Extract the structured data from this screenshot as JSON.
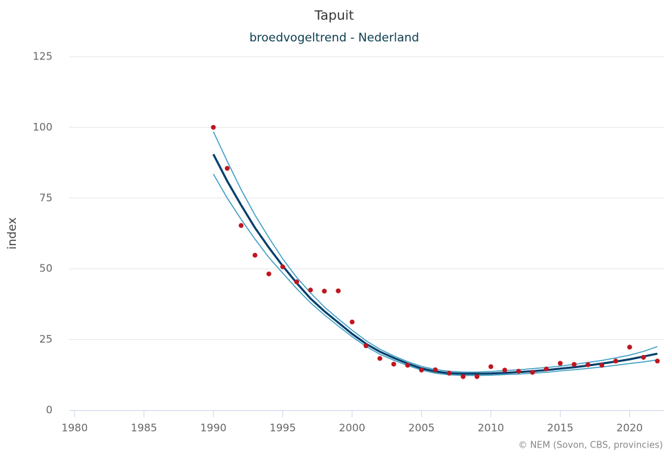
{
  "chart_data": {
    "type": "line",
    "title": "Tapuit",
    "subtitle": "broedvogeltrend - Nederland",
    "y_label": "index",
    "credit": "© NEM (Sovon, CBS, provincies)",
    "x": [
      1990,
      1991,
      1992,
      1993,
      1994,
      1995,
      1996,
      1997,
      1998,
      1999,
      2000,
      2001,
      2002,
      2003,
      2004,
      2005,
      2006,
      2007,
      2008,
      2009,
      2010,
      2011,
      2012,
      2013,
      2014,
      2015,
      2016,
      2017,
      2018,
      2019,
      2020,
      2021,
      2022
    ],
    "series": [
      {
        "type": "line",
        "color": "#3a9cc3",
        "width": 1.5,
        "values": [
          98.5,
          88,
          78,
          69,
          61,
          53.5,
          47,
          41.5,
          36.5,
          32.3,
          28.3,
          24.6,
          21.6,
          19.2,
          17.2,
          15.5,
          14.4,
          13.8,
          13.5,
          13.5,
          13.7,
          14,
          14.3,
          14.7,
          15.1,
          15.6,
          16.2,
          16.9,
          17.6,
          18.5,
          19.5,
          20.8,
          22.5
        ]
      },
      {
        "type": "line",
        "color": "#3a9cc3",
        "width": 1.5,
        "values": [
          83.5,
          75,
          67.5,
          60.5,
          54,
          48.5,
          43,
          38,
          33.7,
          29.8,
          26,
          22.6,
          19.8,
          17.7,
          15.8,
          14.2,
          13.1,
          12.5,
          12.3,
          12.3,
          12.4,
          12.6,
          12.8,
          13.1,
          13.4,
          13.9,
          14.3,
          14.8,
          15.3,
          15.9,
          16.5,
          17.1,
          17.8
        ]
      },
      {
        "type": "line",
        "color": "#003e6b",
        "width": 3,
        "values": [
          90.5,
          81,
          72.5,
          64.5,
          57.5,
          51,
          45,
          39.5,
          35,
          31,
          27,
          23.5,
          20.7,
          18.5,
          16.5,
          14.8,
          13.7,
          13.1,
          12.9,
          12.9,
          13,
          13.2,
          13.5,
          13.8,
          14.2,
          14.7,
          15.2,
          15.8,
          16.5,
          17.2,
          18,
          19,
          20
        ]
      },
      {
        "type": "scatter",
        "color": "#c0151f",
        "values": [
          100,
          85.5,
          65.3,
          54.8,
          48.2,
          50.7,
          45.4,
          42.5,
          42.1,
          42.2,
          31.2,
          22.8,
          18.3,
          16.3,
          15.9,
          14.2,
          14.3,
          13.1,
          11.9,
          11.9,
          15.4,
          14.2,
          13.8,
          13.4,
          14.6,
          16.6,
          16.2,
          16.1,
          15.9,
          17.4,
          22.3,
          18.7,
          17.4
        ]
      }
    ],
    "xlim": [
      1979.6,
      2022.5
    ],
    "xticks": [
      1980,
      1985,
      1990,
      1995,
      2000,
      2005,
      2010,
      2015,
      2020
    ],
    "ylim": [
      0,
      125
    ],
    "yticks": [
      0,
      25,
      50,
      75,
      100,
      125
    ],
    "grid": true
  }
}
